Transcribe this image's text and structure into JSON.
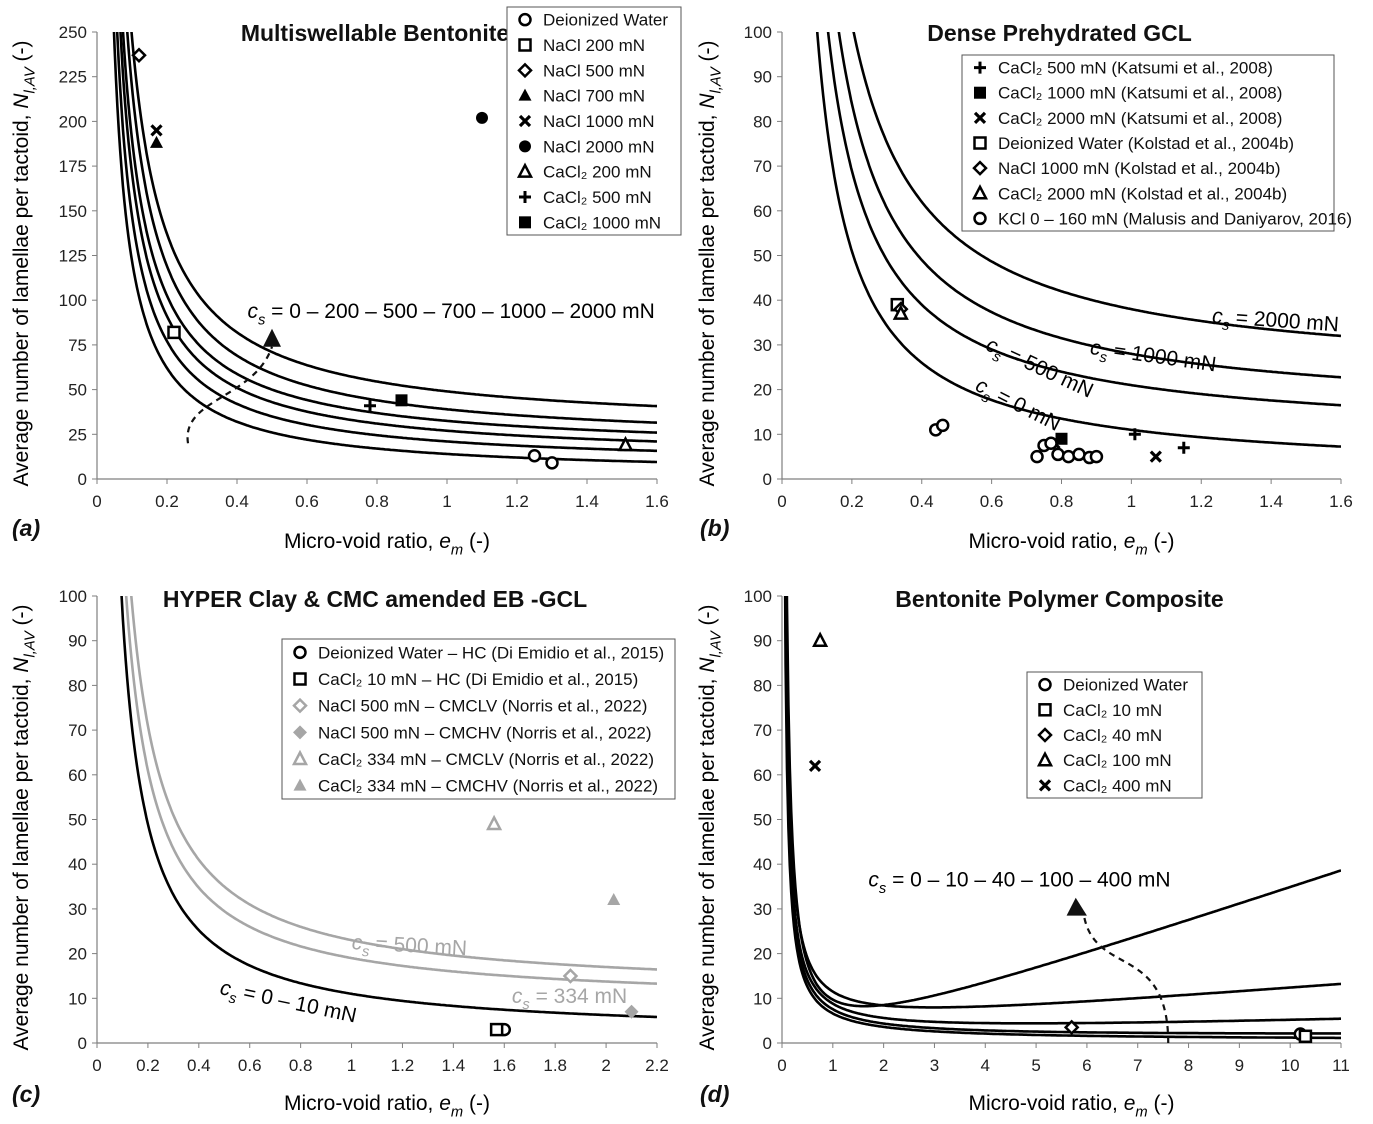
{
  "chart_data": [
    {
      "type": "scatter",
      "panel_label": "(a)",
      "title": "Multiswellable Bentonite",
      "xlabel": "Micro-void ratio, e_m (-)",
      "ylabel": "Average number of lamellae per tactoid, N_l,AV (-)",
      "xlim": [
        0,
        1.6
      ],
      "ylim": [
        0,
        250
      ],
      "xticks": [
        0,
        0.2,
        0.4,
        0.6,
        0.8,
        1,
        1.2,
        1.4,
        1.6
      ],
      "yticks": [
        0,
        25,
        50,
        75,
        100,
        125,
        150,
        175,
        200,
        225,
        250
      ],
      "grid": false,
      "legend_position": "top-right",
      "series": [
        {
          "name": "Deionized Water",
          "marker": "circle-open",
          "points": [
            [
              1.25,
              13
            ],
            [
              1.3,
              9
            ]
          ]
        },
        {
          "name": "NaCl 200 mN",
          "marker": "square-open",
          "points": [
            [
              0.22,
              82
            ]
          ]
        },
        {
          "name": "NaCl 500 mN",
          "marker": "diamond-open",
          "points": [
            [
              0.12,
              237
            ]
          ]
        },
        {
          "name": "NaCl 700 mN",
          "marker": "triangle-filled",
          "points": [
            [
              0.17,
              188
            ]
          ]
        },
        {
          "name": "NaCl 1000 mN",
          "marker": "x",
          "points": [
            [
              0.17,
              195
            ]
          ]
        },
        {
          "name": "NaCl 2000 mN",
          "marker": "circle-filled",
          "points": [
            [
              1.1,
              202
            ]
          ]
        },
        {
          "name": "CaCl₂ 200 mN",
          "marker": "triangle-open",
          "points": [
            [
              1.51,
              19
            ]
          ]
        },
        {
          "name": "CaCl₂ 500 mN",
          "marker": "plus",
          "points": [
            [
              0.78,
              41
            ]
          ]
        },
        {
          "name": "CaCl₂ 1000 mN",
          "marker": "square-filled",
          "points": [
            [
              0.87,
              44
            ]
          ]
        }
      ],
      "curves": [
        {
          "family": "c_s",
          "value": "0 mN",
          "type": "hyperbola",
          "params": {
            "a": 12,
            "b": 2,
            "c": 0
          }
        },
        {
          "family": "c_s",
          "value": "200 mN",
          "type": "hyperbola",
          "params": {
            "a": 14,
            "b": 7,
            "c": 0
          }
        },
        {
          "family": "c_s",
          "value": "500 mN",
          "type": "hyperbola",
          "params": {
            "a": 16,
            "b": 11,
            "c": 0
          }
        },
        {
          "family": "c_s",
          "value": "700 mN",
          "type": "hyperbola",
          "params": {
            "a": 17.5,
            "b": 15,
            "c": 0
          }
        },
        {
          "family": "c_s",
          "value": "1000 mN",
          "type": "hyperbola",
          "params": {
            "a": 20,
            "b": 19,
            "c": 0
          }
        },
        {
          "family": "c_s",
          "value": "2000 mN",
          "type": "hyperbola",
          "params": {
            "a": 22,
            "b": 27,
            "c": 0
          }
        }
      ],
      "annotations": [
        {
          "text": "c_s = 0 – 200 – 500 – 700 – 1000 – 2000 mN",
          "x": 0.43,
          "y": 90
        }
      ]
    },
    {
      "type": "scatter",
      "panel_label": "(b)",
      "title": "Dense Prehydrated GCL",
      "xlabel": "Micro-void ratio, e_m (-)",
      "ylabel": "Average number of lamellae per tactoid, N_l,AV (-)",
      "xlim": [
        0,
        1.6
      ],
      "ylim": [
        0,
        100
      ],
      "xticks": [
        0,
        0.2,
        0.4,
        0.6,
        0.8,
        1,
        1.2,
        1.4,
        1.6
      ],
      "yticks": [
        0,
        10,
        20,
        30,
        40,
        50,
        60,
        70,
        80,
        90,
        100
      ],
      "grid": false,
      "legend_position": "top-right",
      "series": [
        {
          "name": "CaCl₂ 500 mN (Katsumi et al., 2008)",
          "marker": "plus",
          "points": [
            [
              1.01,
              10
            ],
            [
              1.15,
              7
            ]
          ]
        },
        {
          "name": "CaCl₂ 1000 mN (Katsumi et al., 2008)",
          "marker": "square-filled",
          "points": [
            [
              0.8,
              9
            ]
          ]
        },
        {
          "name": "CaCl₂ 2000 mN (Katsumi et al., 2008)",
          "marker": "x",
          "points": [
            [
              1.07,
              5
            ],
            [
              0.78,
              8
            ]
          ]
        },
        {
          "name": "Deionized Water (Kolstad et al., 2004b)",
          "marker": "square-open",
          "points": [
            [
              0.33,
              39
            ]
          ]
        },
        {
          "name": "NaCl 1000 mN (Kolstad et al., 2004b)",
          "marker": "diamond-open",
          "points": [
            [
              0.34,
              38
            ]
          ]
        },
        {
          "name": "CaCl₂ 2000 mN (Kolstad et al., 2004b)",
          "marker": "triangle-open",
          "points": [
            [
              0.34,
              37
            ]
          ]
        },
        {
          "name": "KCl 0 – 160 mN (Malusis and Daniyarov, 2016)",
          "marker": "circle-open",
          "points": [
            [
              0.44,
              11
            ],
            [
              0.46,
              12
            ],
            [
              0.73,
              5
            ],
            [
              0.75,
              7.5
            ],
            [
              0.77,
              8
            ],
            [
              0.79,
              5.5
            ],
            [
              0.82,
              5
            ],
            [
              0.85,
              5.5
            ],
            [
              0.88,
              4.8
            ],
            [
              0.9,
              5
            ]
          ]
        }
      ],
      "curves": [
        {
          "family": "c_s",
          "value": "0 mN",
          "type": "hyperbola",
          "params": {
            "a": 10,
            "b": 1,
            "c": 0
          }
        },
        {
          "family": "c_s",
          "value": "500 mN",
          "type": "hyperbola",
          "params": {
            "a": 12,
            "b": 9,
            "c": 0
          }
        },
        {
          "family": "c_s",
          "value": "1000 mN",
          "type": "hyperbola",
          "params": {
            "a": 14,
            "b": 14,
            "c": 0
          }
        },
        {
          "family": "c_s",
          "value": "2000 mN",
          "type": "hyperbola",
          "params": {
            "a": 16,
            "b": 22,
            "c": 0
          }
        }
      ],
      "annotations": [
        {
          "text": "c_s = 2000 mN",
          "x": 1.23,
          "y": 35,
          "rotate": 4
        },
        {
          "text": "c_s = 1000 mN",
          "x": 0.88,
          "y": 28,
          "rotate": 8
        },
        {
          "text": "c_s = 500 mN",
          "x": 0.58,
          "y": 29,
          "rotate": 25
        },
        {
          "text": "c_s = 0 mN",
          "x": 0.55,
          "y": 20,
          "rotate": 27
        }
      ]
    },
    {
      "type": "scatter",
      "panel_label": "(c)",
      "title": "HYPER Clay & CMC amended EB -GCL",
      "xlabel": "Micro-void ratio, e_m (-)",
      "ylabel": "Average number of lamellae per tactoid, N_l,AV (-)",
      "xlim": [
        0,
        2.2
      ],
      "ylim": [
        0,
        100
      ],
      "xticks": [
        0,
        0.2,
        0.4,
        0.6,
        0.8,
        1,
        1.2,
        1.4,
        1.6,
        1.8,
        2,
        2.2
      ],
      "yticks": [
        0,
        10,
        20,
        30,
        40,
        50,
        60,
        70,
        80,
        90,
        100
      ],
      "grid": false,
      "legend_position": "top-right",
      "series": [
        {
          "name": "Deionized Water – HC (Di Emidio et al., 2015)",
          "marker": "circle-open",
          "color": "#000000",
          "points": [
            [
              1.6,
              3
            ]
          ]
        },
        {
          "name": "CaCl₂ 10 mN – HC (Di Emidio et al., 2015)",
          "marker": "square-open",
          "color": "#000000",
          "points": [
            [
              1.57,
              3
            ]
          ]
        },
        {
          "name": "NaCl 500 mN – CMCLV (Norris et al., 2022)",
          "marker": "diamond-open",
          "color": "#a6a6a6",
          "points": [
            [
              1.86,
              15
            ]
          ]
        },
        {
          "name": "NaCl 500 mN – CMCHV (Norris et al., 2022)",
          "marker": "diamond-filled",
          "color": "#a6a6a6",
          "points": [
            [
              2.1,
              7
            ]
          ]
        },
        {
          "name": "CaCl₂ 334 mN – CMCLV (Norris et al., 2022)",
          "marker": "triangle-open",
          "color": "#a6a6a6",
          "points": [
            [
              1.56,
              49
            ]
          ]
        },
        {
          "name": "CaCl₂ 334 mN – CMCHV (Norris et al., 2022)",
          "marker": "triangle-filled",
          "color": "#a6a6a6",
          "points": [
            [
              2.03,
              32
            ]
          ]
        }
      ],
      "curves": [
        {
          "family": "c_s",
          "value": "0 – 10 mN",
          "color": "#000000",
          "type": "hyperbola",
          "params": {
            "a": 9.5,
            "b": 1.5,
            "c": 0
          }
        },
        {
          "family": "c_s",
          "value": "334 mN",
          "color": "#a6a6a6",
          "type": "hyperbola",
          "params": {
            "a": 10.5,
            "b": 8.5,
            "c": 0
          }
        },
        {
          "family": "c_s",
          "value": "500 mN",
          "color": "#a6a6a6",
          "type": "hyperbola",
          "params": {
            "a": 12,
            "b": 11,
            "c": 0
          }
        }
      ],
      "annotations": [
        {
          "text": "c_s = 500 mN",
          "color": "#a6a6a6",
          "x": 1.0,
          "y": 21,
          "rotate": 3
        },
        {
          "text": "c_s = 334 mN",
          "color": "#a6a6a6",
          "x": 1.63,
          "y": 9,
          "rotate": 0
        },
        {
          "text": "c_s = 0 – 10 mN",
          "color": "#000000",
          "x": 0.48,
          "y": 11,
          "rotate": 12
        }
      ]
    },
    {
      "type": "scatter",
      "panel_label": "(d)",
      "title": "Bentonite Polymer Composite",
      "xlabel": "Micro-void ratio, e_m (-)",
      "ylabel": "Average number of lamellae per tactoid, N_l,AV (-)",
      "xlim": [
        0,
        11
      ],
      "ylim": [
        0,
        100
      ],
      "xticks": [
        0,
        1,
        2,
        3,
        4,
        5,
        6,
        7,
        8,
        9,
        10,
        11
      ],
      "yticks": [
        0,
        10,
        20,
        30,
        40,
        50,
        60,
        70,
        80,
        90,
        100
      ],
      "grid": false,
      "legend_position": "top-right",
      "series": [
        {
          "name": "Deionized Water",
          "marker": "circle-open",
          "points": [
            [
              10.2,
              2
            ]
          ]
        },
        {
          "name": "CaCl₂ 10 mN",
          "marker": "square-open",
          "points": [
            [
              10.3,
              1.5
            ]
          ]
        },
        {
          "name": "CaCl₂ 40 mN",
          "marker": "diamond-open",
          "points": [
            [
              5.7,
              3.5
            ]
          ]
        },
        {
          "name": "CaCl₂ 100 mN",
          "marker": "triangle-open",
          "points": [
            [
              0.75,
              90
            ]
          ]
        },
        {
          "name": "CaCl₂ 400 mN",
          "marker": "x",
          "points": [
            [
              0.65,
              62
            ]
          ]
        }
      ],
      "curves": [
        {
          "family": "c_s",
          "value": "0 mN",
          "type": "hyperbola-linear",
          "params": {
            "a": 6,
            "b": 0.6,
            "c": 0
          }
        },
        {
          "family": "c_s",
          "value": "10 mN",
          "type": "hyperbola-linear",
          "params": {
            "a": 6.5,
            "b": 1.0,
            "c": 0.05
          }
        },
        {
          "family": "c_s",
          "value": "40 mN",
          "type": "hyperbola-linear",
          "params": {
            "a": 7,
            "b": 1.5,
            "c": 0.3
          }
        },
        {
          "family": "c_s",
          "value": "100 mN",
          "type": "hyperbola-linear",
          "params": {
            "a": 8,
            "b": 2.6,
            "c": 0.9
          }
        },
        {
          "family": "c_s",
          "value": "400 mN",
          "type": "hyperbola-linear",
          "params": {
            "a": 10,
            "b": -4.1,
            "c": 3.8
          }
        }
      ],
      "annotations": [
        {
          "text": "c_s = 0 – 10 – 40 – 100 – 400 mN",
          "x": 1.7,
          "y": 35
        }
      ]
    }
  ]
}
